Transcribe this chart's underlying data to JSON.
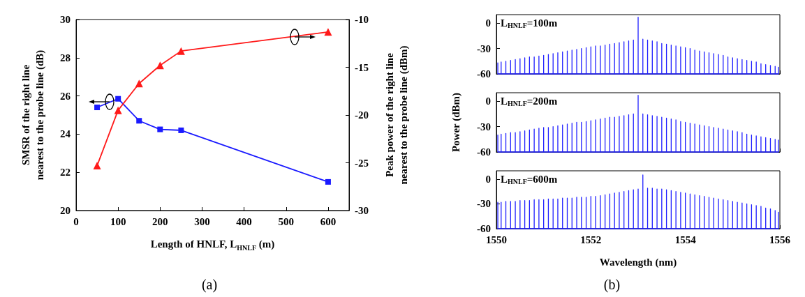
{
  "chart_data": [
    {
      "type": "line",
      "xlabel": "Length of HNLF, L$_{HNLF}$ (m)",
      "ylabel": "SMSR of the right line\nnearest to the probe line (dB)",
      "y2label": "Peak power of the right line\nnearest to the probe line (dBm)",
      "x": [
        50,
        100,
        150,
        200,
        250,
        600
      ],
      "xlim": [
        0,
        650
      ],
      "xticks": [
        0,
        100,
        200,
        300,
        400,
        500,
        600
      ],
      "ylim": [
        20,
        30
      ],
      "yticks": [
        20,
        22,
        24,
        26,
        28,
        30
      ],
      "y2lim": [
        -30,
        -10
      ],
      "y2ticks": [
        -30,
        -25,
        -20,
        -15,
        -10
      ],
      "grid": false,
      "annotations": [
        "(a)"
      ],
      "series": [
        {
          "color": "#1a1aff",
          "marker": "square",
          "values": [
            25.4,
            25.85,
            24.7,
            24.25,
            24.2,
            21.5
          ]
        },
        {
          "color": "#ff1a1a",
          "marker": "triangle",
          "axis": "y2",
          "values": [
            -25.3,
            -19.5,
            -16.7,
            -14.8,
            -13.3,
            -11.3
          ]
        }
      ]
    },
    {
      "type": "line",
      "marker": "none",
      "xlim": [
        1550,
        1556
      ],
      "xticks": [
        1550,
        1552,
        1554,
        1556
      ],
      "ylim": [
        -60,
        10
      ],
      "yticks": [
        0,
        -30,
        -60
      ],
      "tick_labels": "y",
      "grid": false,
      "annotations": [
        "L$_{HNLF}$=100m"
      ],
      "x": [
        1550.03,
        1550.03,
        1550.03,
        1550.1,
        1550.1,
        1550.1,
        1550.2,
        1550.2,
        1550.2,
        1550.3,
        1550.3,
        1550.3,
        1550.4,
        1550.4,
        1550.4,
        1550.5,
        1550.5,
        1550.5,
        1550.6,
        1550.6,
        1550.6,
        1550.7,
        1550.7,
        1550.7,
        1550.8,
        1550.8,
        1550.8,
        1550.9,
        1550.9,
        1550.9,
        1551,
        1551,
        1551,
        1551.1,
        1551.1,
        1551.1,
        1551.2,
        1551.2,
        1551.2,
        1551.3,
        1551.3,
        1551.3,
        1551.4,
        1551.4,
        1551.4,
        1551.5,
        1551.5,
        1551.5,
        1551.6,
        1551.6,
        1551.6,
        1551.7,
        1551.7,
        1551.7,
        1551.8,
        1551.8,
        1551.8,
        1551.9,
        1551.9,
        1551.9,
        1552,
        1552,
        1552,
        1552.1,
        1552.1,
        1552.1,
        1552.2,
        1552.2,
        1552.2,
        1552.3,
        1552.3,
        1552.3,
        1552.4,
        1552.4,
        1552.4,
        1552.5,
        1552.5,
        1552.5,
        1552.6,
        1552.6,
        1552.6,
        1552.7,
        1552.7,
        1552.7,
        1552.8,
        1552.8,
        1552.8,
        1552.9,
        1552.9,
        1552.9,
        1553,
        1553,
        1553,
        1553.1,
        1553.1,
        1553.1,
        1553.2,
        1553.2,
        1553.2,
        1553.3,
        1553.3,
        1553.3,
        1553.4,
        1553.4,
        1553.4,
        1553.5,
        1553.5,
        1553.5,
        1553.6,
        1553.6,
        1553.6,
        1553.7,
        1553.7,
        1553.7,
        1553.8,
        1553.8,
        1553.8,
        1553.9,
        1553.9,
        1553.9,
        1554,
        1554,
        1554,
        1554.1,
        1554.1,
        1554.1,
        1554.2,
        1554.2,
        1554.2,
        1554.3,
        1554.3,
        1554.3,
        1554.4,
        1554.4,
        1554.4,
        1554.5,
        1554.5,
        1554.5,
        1554.6,
        1554.6,
        1554.6,
        1554.7,
        1554.7,
        1554.7,
        1554.8,
        1554.8,
        1554.8,
        1554.9,
        1554.9,
        1554.9,
        1555,
        1555,
        1555,
        1555.1,
        1555.1,
        1555.1,
        1555.2,
        1555.2,
        1555.2,
        1555.3,
        1555.3,
        1555.3,
        1555.4,
        1555.4,
        1555.4,
        1555.5,
        1555.5,
        1555.5,
        1555.6,
        1555.6,
        1555.6,
        1555.7,
        1555.7,
        1555.7,
        1555.8,
        1555.8,
        1555.8,
        1555.9,
        1555.9,
        1555.9,
        1555.97,
        1555.97,
        1555.97
      ],
      "series": [
        {
          "color": "#1f1fff",
          "values": [
            -60,
            -47,
            -60,
            -60,
            -46,
            -60,
            -60,
            -45,
            -60,
            -60,
            -44,
            -60,
            -60,
            -43,
            -60,
            -60,
            -42,
            -60,
            -60,
            -41,
            -60,
            -60,
            -40,
            -60,
            -60,
            -40,
            -60,
            -60,
            -39,
            -60,
            -60,
            -38,
            -60,
            -60,
            -37,
            -60,
            -60,
            -36,
            -60,
            -60,
            -35,
            -60,
            -60,
            -34,
            -60,
            -60,
            -33,
            -60,
            -60,
            -32,
            -60,
            -60,
            -31,
            -60,
            -60,
            -30,
            -60,
            -60,
            -29,
            -60,
            -60,
            -28,
            -60,
            -60,
            -27,
            -60,
            -60,
            -27,
            -60,
            -60,
            -26,
            -60,
            -60,
            -25,
            -60,
            -60,
            -24,
            -60,
            -60,
            -23,
            -60,
            -60,
            -22,
            -60,
            -60,
            -21,
            -60,
            -60,
            -20,
            -60,
            -60,
            7,
            -60,
            -60,
            -19,
            -60,
            -60,
            -20,
            -60,
            -60,
            -21,
            -60,
            -60,
            -22,
            -60,
            -60,
            -24,
            -60,
            -60,
            -25,
            -60,
            -60,
            -26,
            -60,
            -60,
            -27,
            -60,
            -60,
            -28,
            -60,
            -60,
            -29,
            -60,
            -60,
            -30,
            -60,
            -60,
            -32,
            -60,
            -60,
            -33,
            -60,
            -60,
            -34,
            -60,
            -60,
            -35,
            -60,
            -60,
            -36,
            -60,
            -60,
            -37,
            -60,
            -60,
            -38,
            -60,
            -60,
            -40,
            -60,
            -60,
            -41,
            -60,
            -60,
            -42,
            -60,
            -60,
            -43,
            -60,
            -60,
            -44,
            -60,
            -60,
            -45,
            -60,
            -60,
            -46,
            -60,
            -60,
            -48,
            -60,
            -60,
            -49,
            -60,
            -60,
            -50,
            -60,
            -60,
            -51,
            -60,
            -60,
            -52,
            -60
          ]
        }
      ]
    },
    {
      "type": "line",
      "marker": "none",
      "ylabel": "Power (dBm)",
      "xlim": [
        1550,
        1556
      ],
      "xticks": [
        1550,
        1552,
        1554,
        1556
      ],
      "ylim": [
        -60,
        10
      ],
      "yticks": [
        0,
        -30,
        -60
      ],
      "tick_labels": "y",
      "grid": false,
      "annotations": [
        "L$_{HNLF}$=200m"
      ],
      "x": [
        1550.03,
        1550.03,
        1550.03,
        1550.1,
        1550.1,
        1550.1,
        1550.2,
        1550.2,
        1550.2,
        1550.3,
        1550.3,
        1550.3,
        1550.4,
        1550.4,
        1550.4,
        1550.5,
        1550.5,
        1550.5,
        1550.6,
        1550.6,
        1550.6,
        1550.7,
        1550.7,
        1550.7,
        1550.8,
        1550.8,
        1550.8,
        1550.9,
        1550.9,
        1550.9,
        1551,
        1551,
        1551,
        1551.1,
        1551.1,
        1551.1,
        1551.2,
        1551.2,
        1551.2,
        1551.3,
        1551.3,
        1551.3,
        1551.4,
        1551.4,
        1551.4,
        1551.5,
        1551.5,
        1551.5,
        1551.6,
        1551.6,
        1551.6,
        1551.7,
        1551.7,
        1551.7,
        1551.8,
        1551.8,
        1551.8,
        1551.9,
        1551.9,
        1551.9,
        1552,
        1552,
        1552,
        1552.1,
        1552.1,
        1552.1,
        1552.2,
        1552.2,
        1552.2,
        1552.3,
        1552.3,
        1552.3,
        1552.4,
        1552.4,
        1552.4,
        1552.5,
        1552.5,
        1552.5,
        1552.6,
        1552.6,
        1552.6,
        1552.7,
        1552.7,
        1552.7,
        1552.8,
        1552.8,
        1552.8,
        1552.9,
        1552.9,
        1552.9,
        1553,
        1553,
        1553,
        1553.1,
        1553.1,
        1553.1,
        1553.2,
        1553.2,
        1553.2,
        1553.3,
        1553.3,
        1553.3,
        1553.4,
        1553.4,
        1553.4,
        1553.5,
        1553.5,
        1553.5,
        1553.6,
        1553.6,
        1553.6,
        1553.7,
        1553.7,
        1553.7,
        1553.8,
        1553.8,
        1553.8,
        1553.9,
        1553.9,
        1553.9,
        1554,
        1554,
        1554,
        1554.1,
        1554.1,
        1554.1,
        1554.2,
        1554.2,
        1554.2,
        1554.3,
        1554.3,
        1554.3,
        1554.4,
        1554.4,
        1554.4,
        1554.5,
        1554.5,
        1554.5,
        1554.6,
        1554.6,
        1554.6,
        1554.7,
        1554.7,
        1554.7,
        1554.8,
        1554.8,
        1554.8,
        1554.9,
        1554.9,
        1554.9,
        1555,
        1555,
        1555,
        1555.1,
        1555.1,
        1555.1,
        1555.2,
        1555.2,
        1555.2,
        1555.3,
        1555.3,
        1555.3,
        1555.4,
        1555.4,
        1555.4,
        1555.5,
        1555.5,
        1555.5,
        1555.6,
        1555.6,
        1555.6,
        1555.7,
        1555.7,
        1555.7,
        1555.8,
        1555.8,
        1555.8,
        1555.9,
        1555.9,
        1555.9,
        1555.97,
        1555.97,
        1555.97
      ],
      "series": [
        {
          "color": "#1f1fff",
          "values": [
            -60,
            -40,
            -60,
            -60,
            -39,
            -60,
            -60,
            -38,
            -60,
            -60,
            -37,
            -60,
            -60,
            -37,
            -60,
            -60,
            -36,
            -60,
            -60,
            -35,
            -60,
            -60,
            -34,
            -60,
            -60,
            -33,
            -60,
            -60,
            -32,
            -60,
            -60,
            -31,
            -60,
            -60,
            -31,
            -60,
            -60,
            -30,
            -60,
            -60,
            -29,
            -60,
            -60,
            -28,
            -60,
            -60,
            -27,
            -60,
            -60,
            -26,
            -60,
            -60,
            -25,
            -60,
            -60,
            -25,
            -60,
            -60,
            -24,
            -60,
            -60,
            -23,
            -60,
            -60,
            -22,
            -60,
            -60,
            -21,
            -60,
            -60,
            -20,
            -60,
            -60,
            -19,
            -60,
            -60,
            -19,
            -60,
            -60,
            -18,
            -60,
            -60,
            -17,
            -60,
            -60,
            -16,
            -60,
            -60,
            -15,
            -60,
            -60,
            7,
            -60,
            -60,
            -15,
            -60,
            -60,
            -16,
            -60,
            -60,
            -17,
            -60,
            -60,
            -18,
            -60,
            -60,
            -19,
            -60,
            -60,
            -20,
            -60,
            -60,
            -21,
            -60,
            -60,
            -22,
            -60,
            -60,
            -24,
            -60,
            -60,
            -25,
            -60,
            -60,
            -26,
            -60,
            -60,
            -27,
            -60,
            -60,
            -28,
            -60,
            -60,
            -29,
            -60,
            -60,
            -30,
            -60,
            -60,
            -31,
            -60,
            -60,
            -32,
            -60,
            -60,
            -33,
            -60,
            -60,
            -34,
            -60,
            -60,
            -35,
            -60,
            -60,
            -36,
            -60,
            -60,
            -37,
            -60,
            -60,
            -39,
            -60,
            -60,
            -40,
            -60,
            -60,
            -41,
            -60,
            -60,
            -42,
            -60,
            -60,
            -43,
            -60,
            -60,
            -44,
            -60,
            -60,
            -45,
            -60,
            -60,
            -46,
            -60
          ]
        }
      ]
    },
    {
      "type": "line",
      "marker": "none",
      "xlabel": "Wavelength (nm)",
      "xlim": [
        1550,
        1556
      ],
      "xticks": [
        1550,
        1552,
        1554,
        1556
      ],
      "ylim": [
        -60,
        10
      ],
      "yticks": [
        0,
        -30,
        -60
      ],
      "grid": false,
      "annotations": [
        "L$_{HNLF}$=600m",
        "(b)"
      ],
      "x": [
        1550.03,
        1550.03,
        1550.03,
        1550.1,
        1550.1,
        1550.1,
        1550.2,
        1550.2,
        1550.2,
        1550.3,
        1550.3,
        1550.3,
        1550.4,
        1550.4,
        1550.4,
        1550.5,
        1550.5,
        1550.5,
        1550.6,
        1550.6,
        1550.6,
        1550.7,
        1550.7,
        1550.7,
        1550.8,
        1550.8,
        1550.8,
        1550.9,
        1550.9,
        1550.9,
        1551,
        1551,
        1551,
        1551.1,
        1551.1,
        1551.1,
        1551.2,
        1551.2,
        1551.2,
        1551.3,
        1551.3,
        1551.3,
        1551.4,
        1551.4,
        1551.4,
        1551.5,
        1551.5,
        1551.5,
        1551.6,
        1551.6,
        1551.6,
        1551.7,
        1551.7,
        1551.7,
        1551.8,
        1551.8,
        1551.8,
        1551.9,
        1551.9,
        1551.9,
        1552,
        1552,
        1552,
        1552.1,
        1552.1,
        1552.1,
        1552.2,
        1552.2,
        1552.2,
        1552.3,
        1552.3,
        1552.3,
        1552.4,
        1552.4,
        1552.4,
        1552.5,
        1552.5,
        1552.5,
        1552.6,
        1552.6,
        1552.6,
        1552.7,
        1552.7,
        1552.7,
        1552.8,
        1552.8,
        1552.8,
        1552.9,
        1552.9,
        1552.9,
        1553,
        1553,
        1553,
        1553.1,
        1553.1,
        1553.1,
        1553.2,
        1553.2,
        1553.2,
        1553.3,
        1553.3,
        1553.3,
        1553.4,
        1553.4,
        1553.4,
        1553.5,
        1553.5,
        1553.5,
        1553.6,
        1553.6,
        1553.6,
        1553.7,
        1553.7,
        1553.7,
        1553.8,
        1553.8,
        1553.8,
        1553.9,
        1553.9,
        1553.9,
        1554,
        1554,
        1554,
        1554.1,
        1554.1,
        1554.1,
        1554.2,
        1554.2,
        1554.2,
        1554.3,
        1554.3,
        1554.3,
        1554.4,
        1554.4,
        1554.4,
        1554.5,
        1554.5,
        1554.5,
        1554.6,
        1554.6,
        1554.6,
        1554.7,
        1554.7,
        1554.7,
        1554.8,
        1554.8,
        1554.8,
        1554.9,
        1554.9,
        1554.9,
        1555,
        1555,
        1555,
        1555.1,
        1555.1,
        1555.1,
        1555.2,
        1555.2,
        1555.2,
        1555.3,
        1555.3,
        1555.3,
        1555.4,
        1555.4,
        1555.4,
        1555.5,
        1555.5,
        1555.5,
        1555.6,
        1555.6,
        1555.6,
        1555.7,
        1555.7,
        1555.7,
        1555.8,
        1555.8,
        1555.8,
        1555.9,
        1555.9,
        1555.9,
        1555.97,
        1555.97,
        1555.97
      ],
      "series": [
        {
          "color": "#1f1fff",
          "values": [
            -60,
            -28,
            -60,
            -60,
            -28,
            -60,
            -60,
            -27,
            -60,
            -60,
            -27,
            -60,
            -60,
            -27,
            -60,
            -60,
            -26,
            -60,
            -60,
            -26,
            -60,
            -60,
            -26,
            -60,
            -60,
            -25,
            -60,
            -60,
            -25,
            -60,
            -60,
            -25,
            -60,
            -60,
            -24,
            -60,
            -60,
            -24,
            -60,
            -60,
            -24,
            -60,
            -60,
            -23,
            -60,
            -60,
            -23,
            -60,
            -60,
            -23,
            -60,
            -60,
            -22,
            -60,
            -60,
            -22,
            -60,
            -60,
            -22,
            -60,
            -60,
            -21,
            -60,
            -60,
            -21,
            -60,
            -60,
            -20,
            -60,
            -60,
            -19,
            -60,
            -60,
            -18,
            -60,
            -60,
            -17,
            -60,
            -60,
            -16,
            -60,
            -60,
            -15,
            -60,
            -60,
            -14,
            -60,
            -60,
            -13,
            -60,
            -60,
            -12,
            -60,
            -60,
            5,
            -60,
            -60,
            -11,
            -60,
            -60,
            -11,
            -60,
            -60,
            -12,
            -60,
            -60,
            -12,
            -60,
            -60,
            -13,
            -60,
            -60,
            -14,
            -60,
            -60,
            -15,
            -60,
            -60,
            -16,
            -60,
            -60,
            -17,
            -60,
            -60,
            -18,
            -60,
            -60,
            -19,
            -60,
            -60,
            -20,
            -60,
            -60,
            -21,
            -60,
            -60,
            -22,
            -60,
            -60,
            -23,
            -60,
            -60,
            -24,
            -60,
            -60,
            -25,
            -60,
            -60,
            -26,
            -60,
            -60,
            -27,
            -60,
            -60,
            -28,
            -60,
            -60,
            -29,
            -60,
            -60,
            -30,
            -60,
            -60,
            -31,
            -60,
            -60,
            -32,
            -60,
            -60,
            -33,
            -60,
            -60,
            -35,
            -60,
            -60,
            -36,
            -60,
            -60,
            -38,
            -60,
            -60,
            -40,
            -60
          ]
        }
      ]
    }
  ]
}
